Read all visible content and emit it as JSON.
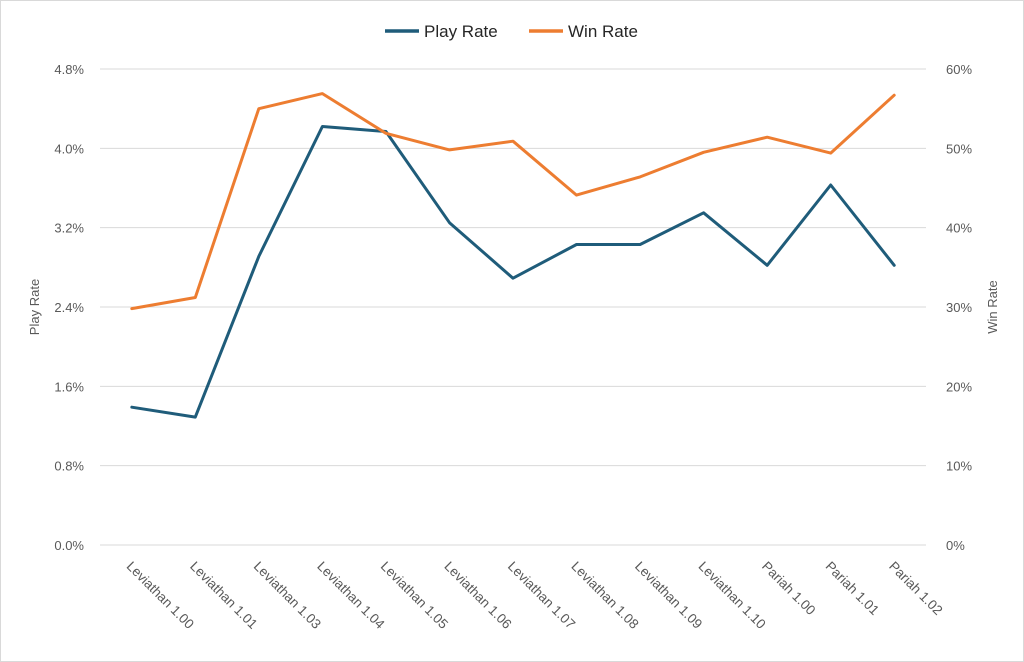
{
  "chart_data": {
    "type": "line",
    "categories": [
      "Leviathan 1.00",
      "Leviathan 1.01",
      "Leviathan 1.03",
      "Leviathan 1.04",
      "Leviathan 1.05",
      "Leviathan 1.06",
      "Leviathan 1.07",
      "Leviathan 1.08",
      "Leviathan 1.09",
      "Leviathan 1.10",
      "Pariah 1.00",
      "Pariah 1.01",
      "Pariah 1.02"
    ],
    "series": [
      {
        "name": "Play Rate",
        "axis": "left",
        "color": "#1f5c7a",
        "values": [
          1.39,
          1.29,
          2.91,
          4.22,
          4.17,
          3.25,
          2.69,
          3.03,
          3.03,
          3.35,
          2.82,
          3.63,
          2.82
        ]
      },
      {
        "name": "Win Rate",
        "axis": "right",
        "color": "#ed7d31",
        "values": [
          29.8,
          31.2,
          55.0,
          56.9,
          51.9,
          49.8,
          50.9,
          44.1,
          46.4,
          49.5,
          51.4,
          49.4,
          56.7
        ]
      }
    ],
    "y_left": {
      "label": "Play Rate",
      "min": 0,
      "max": 4.8,
      "ticks": [
        "0.0%",
        "0.8%",
        "1.6%",
        "2.4%",
        "3.2%",
        "4.0%",
        "4.8%"
      ]
    },
    "y_right": {
      "label": "Win Rate",
      "min": 0,
      "max": 60,
      "ticks": [
        "0%",
        "10%",
        "20%",
        "30%",
        "40%",
        "50%",
        "60%"
      ]
    },
    "legend_position": "top-center",
    "grid": true
  }
}
